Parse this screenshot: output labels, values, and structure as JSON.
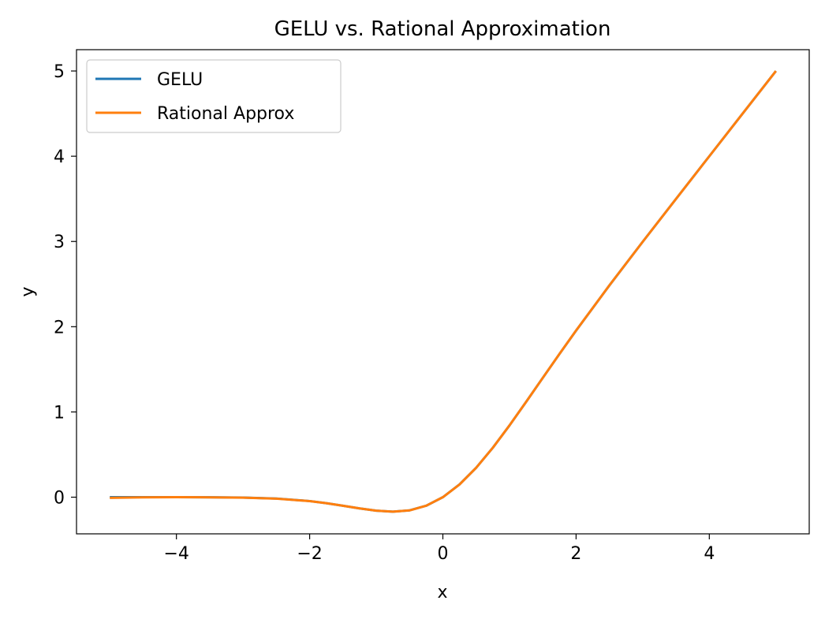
{
  "chart_data": {
    "type": "line",
    "title": "GELU vs. Rational Approximation",
    "xlabel": "x",
    "ylabel": "y",
    "xlim": [
      -5.5,
      5.5
    ],
    "ylim": [
      -0.43,
      5.25
    ],
    "xticks": [
      -4,
      -2,
      0,
      2,
      4
    ],
    "xtick_labels": [
      "−4",
      "−2",
      "0",
      "2",
      "4"
    ],
    "yticks": [
      0,
      1,
      2,
      3,
      4,
      5
    ],
    "ytick_labels": [
      "0",
      "1",
      "2",
      "3",
      "4",
      "5"
    ],
    "grid": false,
    "legend_position": "top-left",
    "x": [
      -5,
      -4.5,
      -4,
      -3.5,
      -3,
      -2.5,
      -2,
      -1.75,
      -1.5,
      -1.25,
      -1,
      -0.75,
      -0.5,
      -0.25,
      0,
      0.25,
      0.5,
      0.75,
      1,
      1.25,
      1.5,
      1.75,
      2,
      2.5,
      3,
      3.5,
      4,
      4.5,
      5
    ],
    "series": [
      {
        "name": "GELU",
        "color": "#1f77b4",
        "values": [
          0,
          0,
          -0.0001,
          -0.0008,
          -0.004,
          -0.0155,
          -0.0455,
          -0.0702,
          -0.1002,
          -0.132,
          -0.1587,
          -0.17,
          -0.1543,
          -0.1003,
          0,
          0.1497,
          0.3457,
          0.58,
          0.8413,
          1.118,
          1.3998,
          1.6798,
          1.9545,
          2.4845,
          2.996,
          3.4992,
          3.9999,
          4.5,
          5
        ]
      },
      {
        "name": "Rational Approx",
        "color": "#ff7f0e",
        "values": [
          -0.008,
          -0.002,
          0.0,
          -0.002,
          -0.006,
          -0.017,
          -0.046,
          -0.07,
          -0.1,
          -0.132,
          -0.158,
          -0.17,
          -0.155,
          -0.1,
          0,
          0.149,
          0.345,
          0.58,
          0.842,
          1.118,
          1.4,
          1.68,
          1.955,
          2.485,
          2.996,
          3.499,
          4.0,
          4.5,
          5.0
        ]
      }
    ]
  }
}
